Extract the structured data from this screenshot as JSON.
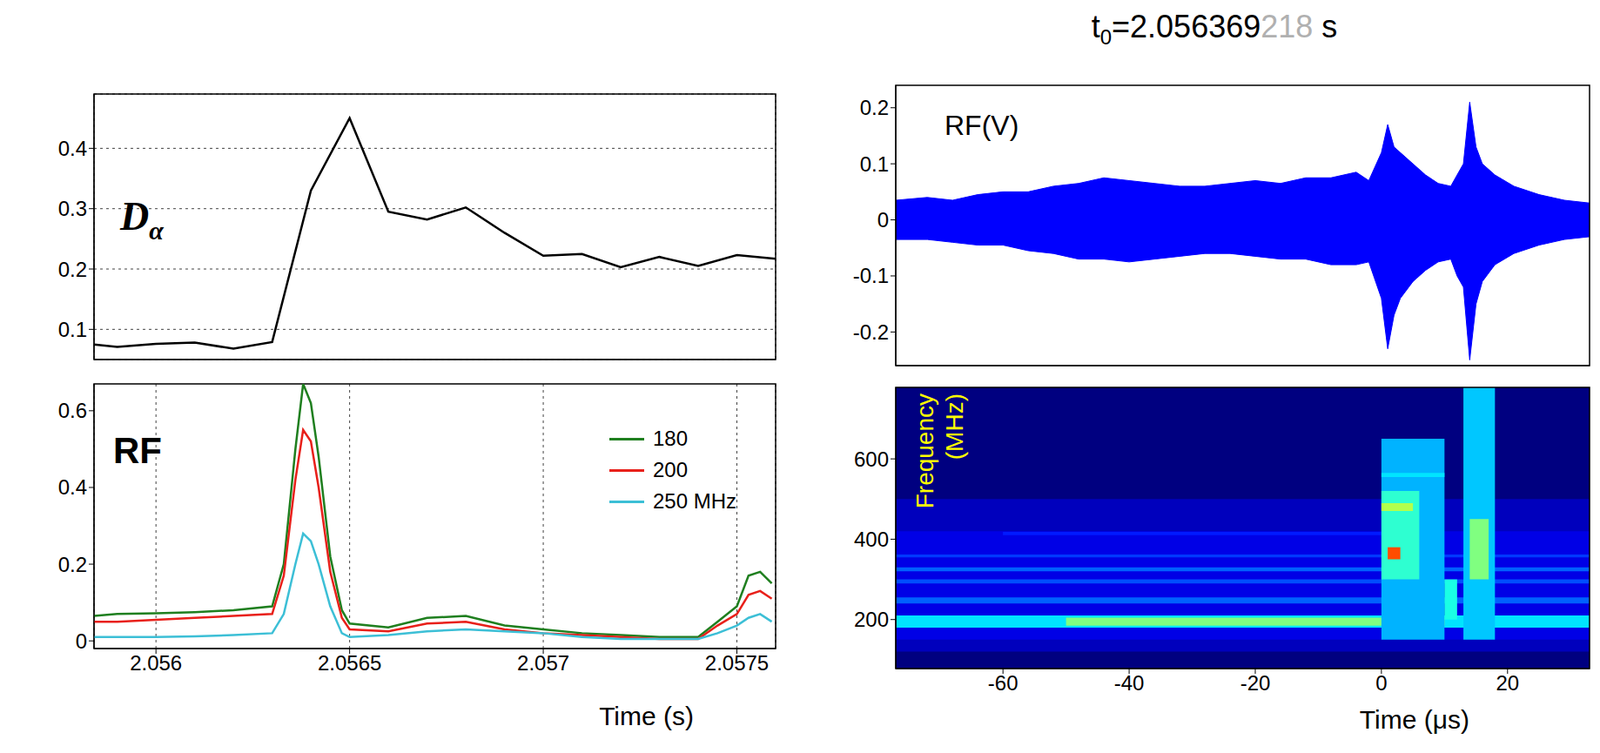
{
  "chart_data": [
    {
      "type": "line",
      "label": [
        "D",
        "α"
      ],
      "x": [
        2.05584,
        2.0559,
        2.056,
        2.0561,
        2.0562,
        2.0563,
        2.0564,
        2.0565,
        2.0566,
        2.0567,
        2.0568,
        2.0569,
        2.057,
        2.0571,
        2.0572,
        2.0573,
        2.0574,
        2.0575,
        2.0576
      ],
      "values": [
        0.075,
        0.071,
        0.076,
        0.078,
        0.068,
        0.079,
        0.33,
        0.45,
        0.295,
        0.282,
        0.302,
        0.26,
        0.222,
        0.225,
        0.203,
        0.22,
        0.205,
        0.223,
        0.217
      ],
      "color": "#000000",
      "xlim": [
        2.05584,
        2.0576
      ],
      "xticks": [
        2.056,
        2.0565,
        2.057,
        2.0575
      ],
      "ylim": [
        0.05,
        0.49
      ],
      "yticks": [
        0.1,
        0.2,
        0.3,
        0.4
      ],
      "grid": true,
      "tick_labels": "y"
    },
    {
      "type": "line",
      "label": "RF",
      "x_label": "Time (s)",
      "x": [
        2.05584,
        2.0559,
        2.056,
        2.0561,
        2.0562,
        2.0563,
        2.05633,
        2.05636,
        2.05638,
        2.0564,
        2.05642,
        2.05645,
        2.05648,
        2.0565,
        2.0566,
        2.0567,
        2.0568,
        2.0569,
        2.057,
        2.0571,
        2.0572,
        2.0573,
        2.0574,
        2.05745,
        2.0575,
        2.05753,
        2.05756,
        2.05759
      ],
      "series": [
        {
          "name": "180",
          "color": "#1f7f1f",
          "values": [
            0.065,
            0.07,
            0.072,
            0.075,
            0.08,
            0.09,
            0.2,
            0.5,
            0.67,
            0.62,
            0.48,
            0.22,
            0.08,
            0.045,
            0.035,
            0.06,
            0.065,
            0.04,
            0.03,
            0.02,
            0.015,
            0.01,
            0.01,
            0.05,
            0.09,
            0.17,
            0.18,
            0.15
          ]
        },
        {
          "name": "200",
          "color": "#e8201a",
          "values": [
            0.05,
            0.05,
            0.055,
            0.06,
            0.065,
            0.07,
            0.17,
            0.42,
            0.55,
            0.52,
            0.4,
            0.18,
            0.06,
            0.03,
            0.025,
            0.045,
            0.05,
            0.03,
            0.02,
            0.015,
            0.01,
            0.005,
            0.005,
            0.04,
            0.07,
            0.12,
            0.13,
            0.11
          ]
        },
        {
          "name": "250 MHz",
          "color": "#3cbfd6",
          "values": [
            0.01,
            0.01,
            0.01,
            0.012,
            0.015,
            0.02,
            0.07,
            0.2,
            0.28,
            0.26,
            0.2,
            0.09,
            0.02,
            0.01,
            0.015,
            0.025,
            0.03,
            0.025,
            0.02,
            0.01,
            0.005,
            0.005,
            0.005,
            0.02,
            0.04,
            0.06,
            0.07,
            0.05
          ]
        }
      ],
      "xlim": [
        2.05584,
        2.0576
      ],
      "xticks": [
        2.056,
        2.0565,
        2.057,
        2.0575
      ],
      "ylim": [
        -0.02,
        0.67
      ],
      "yticks": [
        0,
        0.2,
        0.4,
        0.6
      ],
      "grid": "x",
      "legend": "upper right"
    },
    {
      "type": "area",
      "title": [
        "t",
        "0",
        "=2.056369",
        "218",
        " s"
      ],
      "label": "RF(V)",
      "x": [
        -77,
        -72,
        -68,
        -64,
        -60,
        -56,
        -52,
        -48,
        -44,
        -40,
        -36,
        -32,
        -28,
        -24,
        -20,
        -16,
        -12,
        -8,
        -4,
        -2,
        0,
        1,
        2,
        3,
        5,
        7,
        9,
        11,
        12,
        13,
        14,
        15,
        16,
        18,
        21,
        25,
        29,
        33
      ],
      "upper": [
        0.035,
        0.04,
        0.035,
        0.045,
        0.05,
        0.05,
        0.06,
        0.065,
        0.075,
        0.07,
        0.065,
        0.06,
        0.06,
        0.065,
        0.07,
        0.065,
        0.075,
        0.075,
        0.085,
        0.07,
        0.12,
        0.17,
        0.13,
        0.12,
        0.1,
        0.08,
        0.065,
        0.06,
        0.08,
        0.1,
        0.21,
        0.13,
        0.1,
        0.08,
        0.06,
        0.045,
        0.035,
        0.03
      ],
      "lower": [
        -0.035,
        -0.035,
        -0.04,
        -0.045,
        -0.045,
        -0.055,
        -0.06,
        -0.07,
        -0.07,
        -0.075,
        -0.07,
        -0.065,
        -0.06,
        -0.06,
        -0.065,
        -0.07,
        -0.07,
        -0.08,
        -0.08,
        -0.075,
        -0.14,
        -0.23,
        -0.17,
        -0.14,
        -0.11,
        -0.09,
        -0.075,
        -0.07,
        -0.1,
        -0.12,
        -0.25,
        -0.15,
        -0.11,
        -0.08,
        -0.06,
        -0.045,
        -0.035,
        -0.03
      ],
      "color": "#0000ff",
      "xlim": [
        -77,
        33
      ],
      "xticks": [
        -60,
        -40,
        -20,
        0,
        20
      ],
      "ylim": [
        -0.26,
        0.24
      ],
      "yticks": [
        -0.2,
        -0.1,
        0,
        0.1,
        0.2
      ],
      "grid": false,
      "tick_labels": "y"
    },
    {
      "type": "heatmap",
      "y_label": "Frequency (MHz)",
      "x_label": "Time (μs)",
      "xlim": [
        -77,
        33
      ],
      "xticks": [
        -60,
        -40,
        -20,
        0,
        20
      ],
      "ylim": [
        78,
        778
      ],
      "yticks": [
        200,
        400,
        600
      ],
      "zlim": [
        0,
        1
      ],
      "cells": [
        {
          "x": [
            -77,
            33
          ],
          "y": [
            78,
            778
          ],
          "z": 0
        },
        {
          "x": [
            -77,
            33
          ],
          "y": [
            120,
            500
          ],
          "z": 0.06
        },
        {
          "x": [
            -77,
            33
          ],
          "y": [
            150,
            420
          ],
          "z": 0.1
        },
        {
          "x": [
            -77,
            33
          ],
          "y": [
            180,
            210
          ],
          "z": 0.35
        },
        {
          "x": [
            -50,
            10
          ],
          "y": [
            185,
            205
          ],
          "z": 0.5
        },
        {
          "x": [
            -77,
            33
          ],
          "y": [
            240,
            255
          ],
          "z": 0.22
        },
        {
          "x": [
            -77,
            33
          ],
          "y": [
            290,
            300
          ],
          "z": 0.2
        },
        {
          "x": [
            -77,
            33
          ],
          "y": [
            320,
            330
          ],
          "z": 0.22
        },
        {
          "x": [
            -77,
            33
          ],
          "y": [
            355,
            362
          ],
          "z": 0.18
        },
        {
          "x": [
            -60,
            0
          ],
          "y": [
            410,
            418
          ],
          "z": 0.15
        },
        {
          "x": [
            0,
            10
          ],
          "y": [
            150,
            650
          ],
          "z": 0.3
        },
        {
          "x": [
            0,
            6
          ],
          "y": [
            300,
            520
          ],
          "z": 0.42
        },
        {
          "x": [
            0,
            10
          ],
          "y": [
            555,
            565
          ],
          "z": 0.35
        },
        {
          "x": [
            0,
            5
          ],
          "y": [
            470,
            490
          ],
          "z": 0.55
        },
        {
          "x": [
            1,
            3
          ],
          "y": [
            350,
            380
          ],
          "z": 0.8
        },
        {
          "x": [
            10,
            12
          ],
          "y": [
            200,
            300
          ],
          "z": 0.4
        },
        {
          "x": [
            13,
            18
          ],
          "y": [
            150,
            778
          ],
          "z": 0.32
        },
        {
          "x": [
            14,
            17
          ],
          "y": [
            300,
            450
          ],
          "z": 0.5
        }
      ]
    }
  ]
}
